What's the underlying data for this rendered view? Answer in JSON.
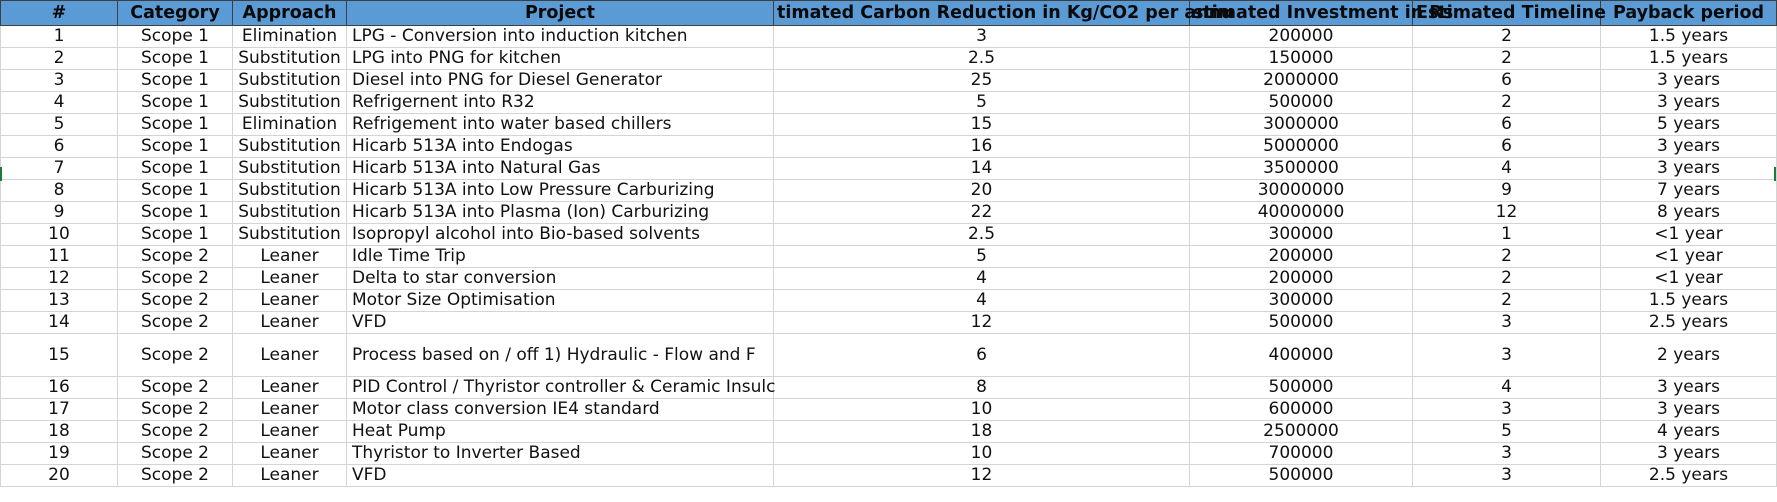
{
  "headers": [
    "#",
    "Category",
    "Approach",
    "Project",
    "timated Carbon Reduction in Kg/CO2 per annu",
    "stimated Investment in Rs",
    "Estimated Timeline",
    "Payback period"
  ],
  "rows": [
    {
      "num": "1",
      "category": "Scope 1",
      "approach": "Elimination",
      "project": "LPG - Conversion into induction kitchen",
      "carbon": "3",
      "investment": "200000",
      "timeline": "2",
      "payback": "1.5 years"
    },
    {
      "num": "2",
      "category": "Scope 1",
      "approach": "Substitution",
      "project": "LPG into PNG for kitchen",
      "carbon": "2.5",
      "investment": "150000",
      "timeline": "2",
      "payback": "1.5 years"
    },
    {
      "num": "3",
      "category": "Scope 1",
      "approach": "Substitution",
      "project": "Diesel into PNG for Diesel Generator",
      "carbon": "25",
      "investment": "2000000",
      "timeline": "6",
      "payback": "3 years"
    },
    {
      "num": "4",
      "category": "Scope 1",
      "approach": "Substitution",
      "project": "Refrigernent into R32",
      "carbon": "5",
      "investment": "500000",
      "timeline": "2",
      "payback": "3 years"
    },
    {
      "num": "5",
      "category": "Scope 1",
      "approach": "Elimination",
      "project": "Refrigement into water based chillers",
      "carbon": "15",
      "investment": "3000000",
      "timeline": "6",
      "payback": "5 years"
    },
    {
      "num": "6",
      "category": "Scope 1",
      "approach": "Substitution",
      "project": "Hicarb 513A into Endogas",
      "carbon": "16",
      "investment": "5000000",
      "timeline": "6",
      "payback": "3 years"
    },
    {
      "num": "7",
      "category": "Scope 1",
      "approach": "Substitution",
      "project": "Hicarb 513A into Natural Gas",
      "carbon": "14",
      "investment": "3500000",
      "timeline": "4",
      "payback": "3 years"
    },
    {
      "num": "8",
      "category": "Scope 1",
      "approach": "Substitution",
      "project": "Hicarb 513A into Low Pressure Carburizing",
      "carbon": "20",
      "investment": "30000000",
      "timeline": "9",
      "payback": "7 years"
    },
    {
      "num": "9",
      "category": "Scope 1",
      "approach": "Substitution",
      "project": "Hicarb 513A into Plasma (Ion) Carburizing",
      "carbon": "22",
      "investment": "40000000",
      "timeline": "12",
      "payback": "8 years"
    },
    {
      "num": "10",
      "category": "Scope 1",
      "approach": "Substitution",
      "project": "Isopropyl alcohol into Bio-based solvents",
      "carbon": "2.5",
      "investment": "300000",
      "timeline": "1",
      "payback": "<1 year"
    },
    {
      "num": "11",
      "category": "Scope 2",
      "approach": "Leaner",
      "project": "Idle Time Trip",
      "carbon": "5",
      "investment": "200000",
      "timeline": "2",
      "payback": "<1 year"
    },
    {
      "num": "12",
      "category": "Scope 2",
      "approach": "Leaner",
      "project": "Delta to star conversion",
      "carbon": "4",
      "investment": "200000",
      "timeline": "2",
      "payback": "<1 year"
    },
    {
      "num": "13",
      "category": "Scope 2",
      "approach": "Leaner",
      "project": "Motor Size Optimisation",
      "carbon": "4",
      "investment": "300000",
      "timeline": "2",
      "payback": "1.5 years"
    },
    {
      "num": "14",
      "category": "Scope 2",
      "approach": "Leaner",
      "project": "VFD",
      "carbon": "12",
      "investment": "500000",
      "timeline": "3",
      "payback": "2.5 years"
    },
    {
      "num": "15",
      "category": "Scope 2",
      "approach": "Leaner",
      "project": "Process based on / off  1) Hydraulic - Flow and  F",
      "carbon": "6",
      "investment": "400000",
      "timeline": "3",
      "payback": "2 years",
      "tall": true
    },
    {
      "num": "16",
      "category": "Scope 2",
      "approach": "Leaner",
      "project": "PID Control / Thyristor controller & Ceramic Insulc",
      "carbon": "8",
      "investment": "500000",
      "timeline": "4",
      "payback": "3 years"
    },
    {
      "num": "17",
      "category": "Scope 2",
      "approach": "Leaner",
      "project": "Motor class conversion IE4 standard",
      "carbon": "10",
      "investment": "600000",
      "timeline": "3",
      "payback": "3 years"
    },
    {
      "num": "18",
      "category": "Scope 2",
      "approach": "Leaner",
      "project": "Heat Pump",
      "carbon": "18",
      "investment": "2500000",
      "timeline": "5",
      "payback": "4 years"
    },
    {
      "num": "19",
      "category": "Scope 2",
      "approach": "Leaner",
      "project": "Thyristor to Inverter Based",
      "carbon": "10",
      "investment": "700000",
      "timeline": "3",
      "payback": "3 years"
    },
    {
      "num": "20",
      "category": "Scope 2",
      "approach": "Leaner",
      "project": "VFD",
      "carbon": "12",
      "investment": "500000",
      "timeline": "3",
      "payback": "2.5 years"
    }
  ],
  "colors": {
    "header_bg": "#5b9bd5",
    "grid": "#d4d4d4"
  }
}
